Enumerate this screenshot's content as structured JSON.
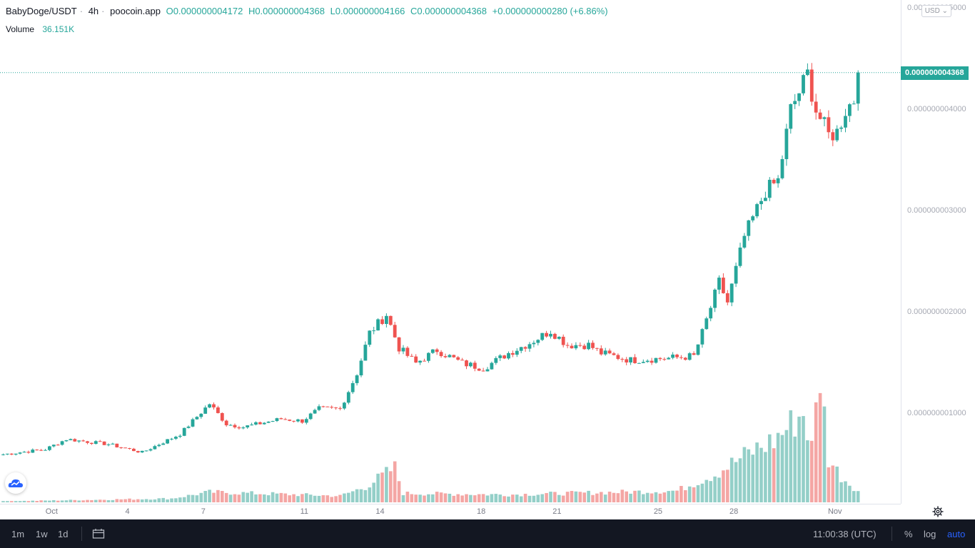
{
  "legend": {
    "symbol": "BabyDoge/USDT",
    "interval": "4h",
    "source": "poocoin.app",
    "open": "O0.000000004172",
    "high": "H0.000000004368",
    "low": "L0.000000004166",
    "close": "C0.000000004368",
    "change": "+0.000000000280 (+6.86%)",
    "volume_label": "Volume",
    "volume_value": "36.151K"
  },
  "price_scale": {
    "currency_button": "USD",
    "last_price_label": "0.000000004368"
  },
  "bottom_bar": {
    "ranges": [
      "1m",
      "1w",
      "1d"
    ],
    "time": "11:00:38 (UTC)",
    "percent": "%",
    "log": "log",
    "auto": "auto"
  },
  "colors": {
    "up": "#26a69a",
    "down": "#ef5350",
    "vol_up": "#94cfc8",
    "vol_down": "#f4a6a4"
  },
  "chart_data": {
    "type": "candlestick",
    "title": "BabyDoge/USDT",
    "ylim": [
      7e-10,
      5.1e-09
    ],
    "y_ticks": [
      "0.000000001000",
      "0.000000002000",
      "0.000000003000",
      "0.000000004000",
      "0.000000005000"
    ],
    "y_tick_values": [
      1e-09,
      2e-09,
      3e-09,
      4e-09,
      5e-09
    ],
    "x_ticks": [
      "Oct",
      "4",
      "7",
      "11",
      "14",
      "18",
      "21",
      "25",
      "28",
      "Nov"
    ],
    "x_tick_bars": [
      11.5,
      29.5,
      47.5,
      71.5,
      89.5,
      113.5,
      131.5,
      155.5,
      173.5,
      197.5
    ],
    "close_keypoints": [
      [
        0,
        6e-10
      ],
      [
        10,
        6.5e-10
      ],
      [
        15,
        7.5e-10
      ],
      [
        25,
        7e-10
      ],
      [
        33,
        6.2e-10
      ],
      [
        42,
        8e-10
      ],
      [
        49,
        1.1e-09
      ],
      [
        53,
        9e-10
      ],
      [
        57,
        8.7e-10
      ],
      [
        66,
        9.5e-10
      ],
      [
        71,
        9.3e-10
      ],
      [
        75,
        1.05e-09
      ],
      [
        80,
        1.05e-09
      ],
      [
        84,
        1.4e-09
      ],
      [
        87,
        1.8e-09
      ],
      [
        91,
        1.98e-09
      ],
      [
        94,
        1.65e-09
      ],
      [
        98,
        1.5e-09
      ],
      [
        103,
        1.63e-09
      ],
      [
        109,
        1.5e-09
      ],
      [
        114,
        1.45e-09
      ],
      [
        120,
        1.6e-09
      ],
      [
        125,
        1.7e-09
      ],
      [
        130,
        1.82e-09
      ],
      [
        134,
        1.68e-09
      ],
      [
        139,
        1.68e-09
      ],
      [
        142,
        1.6e-09
      ],
      [
        149,
        1.53e-09
      ],
      [
        158,
        1.55e-09
      ],
      [
        164,
        1.57e-09
      ],
      [
        166,
        1.8e-09
      ],
      [
        170,
        2.3e-09
      ],
      [
        172,
        2.1e-09
      ],
      [
        176,
        2.75e-09
      ],
      [
        181,
        3.2e-09
      ],
      [
        184,
        3.3e-09
      ],
      [
        187,
        4e-09
      ],
      [
        191,
        4.35e-09
      ],
      [
        193,
        4e-09
      ],
      [
        196,
        3.75e-09
      ],
      [
        198,
        3.78e-09
      ],
      [
        200,
        4e-09
      ],
      [
        202,
        4.1e-09
      ],
      [
        203,
        4.37e-09
      ]
    ],
    "volume_keypoints": [
      [
        0,
        0.008
      ],
      [
        40,
        0.03
      ],
      [
        49,
        0.08
      ],
      [
        80,
        0.05
      ],
      [
        86,
        0.12
      ],
      [
        93,
        0.27
      ],
      [
        95,
        0.07
      ],
      [
        120,
        0.06
      ],
      [
        160,
        0.09
      ],
      [
        169,
        0.22
      ],
      [
        172,
        0.28
      ],
      [
        178,
        0.4
      ],
      [
        183,
        0.48
      ],
      [
        190,
        0.7
      ],
      [
        192,
        0.42
      ],
      [
        194,
        1.0
      ],
      [
        196,
        0.34
      ],
      [
        199,
        0.2
      ],
      [
        203,
        0.09
      ]
    ],
    "bar_count": 204
  }
}
